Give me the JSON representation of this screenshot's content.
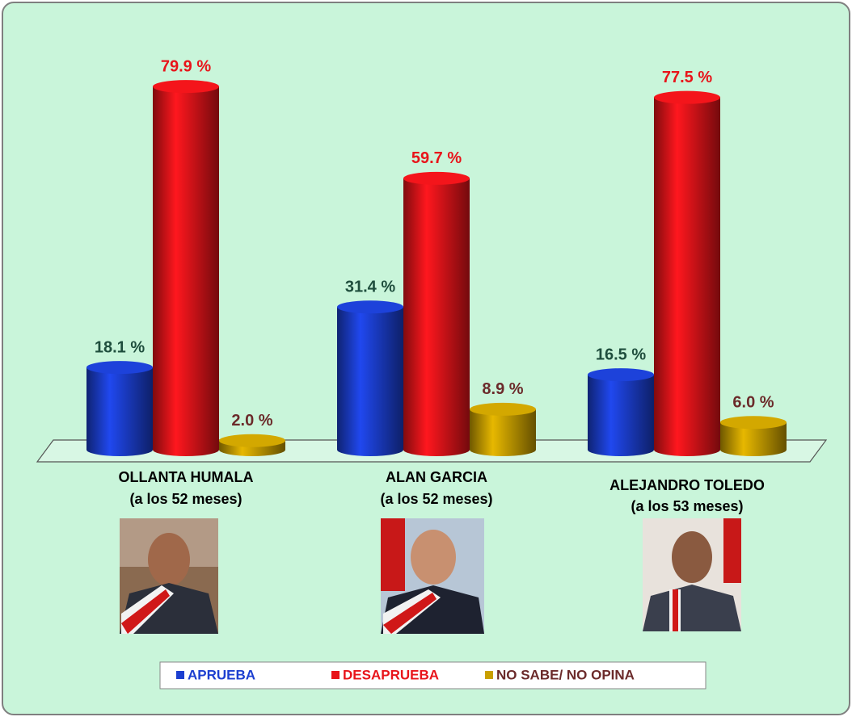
{
  "chart_data": {
    "type": "bar",
    "categories": [
      "OLLANTA HUMALA",
      "ALAN GARCIA",
      "ALEJANDRO TOLEDO"
    ],
    "category_subtitles": [
      "(a los 52 meses)",
      "(a los 52 meses)",
      "(a los 53 meses)"
    ],
    "series": [
      {
        "name": "APRUEBA",
        "color": "#1c3fd0",
        "label_color": "#1f4e3d",
        "legend_color": "#1c3fd0",
        "values": [
          18.1,
          31.4,
          16.5
        ],
        "value_labels": [
          "18.1 %",
          "31.4 %",
          "16.5 %"
        ]
      },
      {
        "name": "DESAPRUEBA",
        "color": "#e8141a",
        "label_color": "#e8141a",
        "legend_color": "#e8141a",
        "values": [
          79.9,
          59.7,
          77.5
        ],
        "value_labels": [
          "79.9 %",
          "59.7 %",
          "77.5 %"
        ]
      },
      {
        "name": "NO SABE/ NO OPINA",
        "color": "#c9a000",
        "label_color": "#6b2a2a",
        "legend_color": "#6b2a2a",
        "values": [
          2.0,
          8.9,
          6.0
        ],
        "value_labels": [
          "2.0 %",
          "8.9 %",
          "6.0 %"
        ]
      }
    ],
    "legend": "bottom"
  }
}
